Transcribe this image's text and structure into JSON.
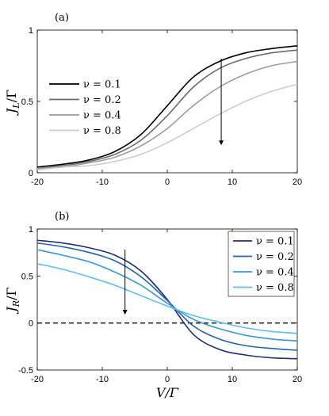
{
  "chart_data": [
    {
      "type": "line",
      "panel_label": "(a)",
      "ylabel": "J_L/Γ",
      "ylabel_parts": {
        "main": "J",
        "sub": "L",
        "rest": "/Γ"
      },
      "xlabel": "",
      "xlim": [
        -20,
        20
      ],
      "ylim": [
        0,
        1
      ],
      "xticks": [
        "-20",
        "-10",
        "0",
        "10",
        "20"
      ],
      "yticks": [
        "0",
        "0.5",
        "1"
      ],
      "legend_position": "middle-left",
      "grid": false,
      "x": [
        -20,
        -16,
        -12,
        -8,
        -4,
        0,
        4,
        8,
        12,
        16,
        20
      ],
      "series": [
        {
          "name": "ν = 0.1",
          "color": "#000000",
          "values": [
            0.04,
            0.06,
            0.09,
            0.15,
            0.27,
            0.47,
            0.67,
            0.78,
            0.84,
            0.87,
            0.89
          ]
        },
        {
          "name": "ν = 0.2",
          "color": "#6b6b6b",
          "values": [
            0.03,
            0.05,
            0.08,
            0.13,
            0.23,
            0.4,
            0.6,
            0.73,
            0.8,
            0.84,
            0.86
          ]
        },
        {
          "name": "ν = 0.4",
          "color": "#9c9c9c",
          "values": [
            0.03,
            0.04,
            0.07,
            0.11,
            0.19,
            0.31,
            0.47,
            0.6,
            0.69,
            0.75,
            0.78
          ]
        },
        {
          "name": "ν = 0.8",
          "color": "#cccccc",
          "values": [
            0.02,
            0.04,
            0.05,
            0.08,
            0.13,
            0.21,
            0.31,
            0.41,
            0.5,
            0.57,
            0.62
          ]
        }
      ],
      "annotation": {
        "type": "arrow",
        "from": [
          8.3,
          0.8
        ],
        "to": [
          8.3,
          0.2
        ],
        "text": ""
      }
    },
    {
      "type": "line",
      "panel_label": "(b)",
      "ylabel": "J_R/Γ",
      "ylabel_parts": {
        "main": "J",
        "sub": "R",
        "rest": "/Γ"
      },
      "xlabel": "V/Γ",
      "xlim": [
        -20,
        20
      ],
      "ylim": [
        -0.5,
        1
      ],
      "xticks": [
        "-20",
        "-10",
        "0",
        "10",
        "20"
      ],
      "yticks": [
        "-0.5",
        "0",
        "0.5",
        "1"
      ],
      "legend_position": "top-right",
      "grid": false,
      "reference_line": {
        "y": 0,
        "style": "dashed"
      },
      "x": [
        -20,
        -16,
        -12,
        -8,
        -4,
        0,
        4,
        8,
        12,
        16,
        20
      ],
      "series": [
        {
          "name": "ν = 0.1",
          "color": "#1f2f7a",
          "values": [
            0.88,
            0.85,
            0.8,
            0.72,
            0.55,
            0.25,
            -0.12,
            -0.28,
            -0.34,
            -0.37,
            -0.38
          ]
        },
        {
          "name": "ν = 0.2",
          "color": "#2166ac",
          "values": [
            0.85,
            0.81,
            0.75,
            0.66,
            0.49,
            0.24,
            -0.03,
            -0.17,
            -0.24,
            -0.27,
            -0.29
          ]
        },
        {
          "name": "ν = 0.4",
          "color": "#3399dd",
          "values": [
            0.78,
            0.72,
            0.65,
            0.54,
            0.4,
            0.21,
            0.04,
            -0.06,
            -0.13,
            -0.17,
            -0.19
          ]
        },
        {
          "name": "ν = 0.8",
          "color": "#5bc0f0",
          "values": [
            0.63,
            0.57,
            0.49,
            0.4,
            0.29,
            0.18,
            0.08,
            0.01,
            -0.05,
            -0.09,
            -0.11
          ]
        }
      ],
      "annotation": {
        "type": "arrow",
        "from": [
          -6.5,
          0.78
        ],
        "to": [
          -6.5,
          0.1
        ],
        "text": ""
      }
    }
  ]
}
